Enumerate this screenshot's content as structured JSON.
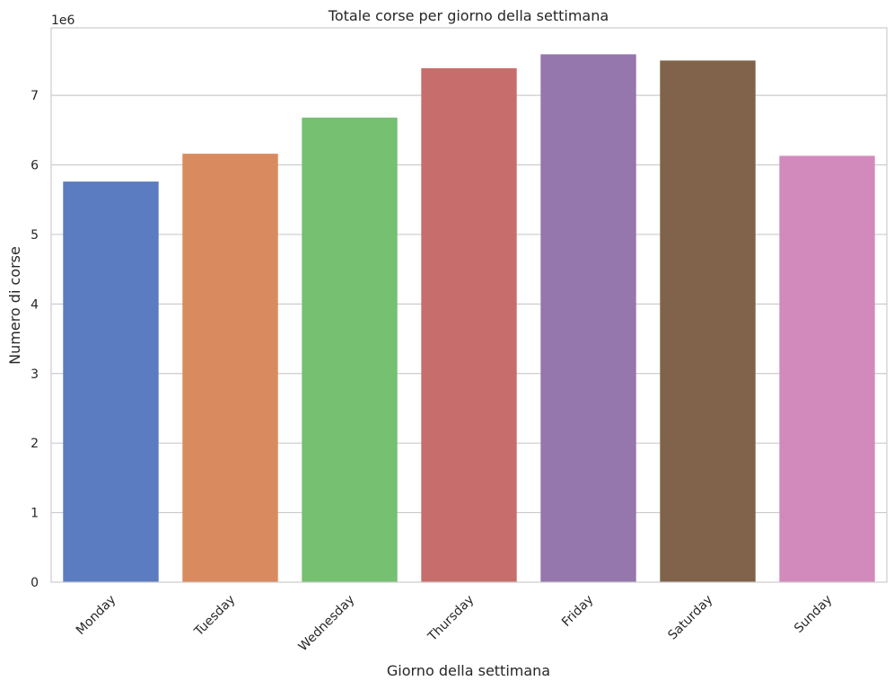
{
  "chart_data": {
    "type": "bar",
    "title": "Totale corse per giorno della settimana",
    "xlabel": "Giorno della settimana",
    "ylabel": "Numero di corse",
    "y_scale_label": "1e6",
    "categories": [
      "Monday",
      "Tuesday",
      "Wednesday",
      "Thursday",
      "Friday",
      "Saturday",
      "Sunday"
    ],
    "values": [
      5760000,
      6160000,
      6680000,
      7390000,
      7590000,
      7500000,
      6130000
    ],
    "colors": [
      "#5b7cc0",
      "#d98a5e",
      "#76c071",
      "#c76e6c",
      "#9577ad",
      "#80634a",
      "#d28abd"
    ],
    "ylim": [
      0,
      7970000
    ],
    "yticks": [
      0,
      1000000,
      2000000,
      3000000,
      4000000,
      5000000,
      6000000,
      7000000
    ],
    "ytick_labels": [
      "0",
      "1",
      "2",
      "3",
      "4",
      "5",
      "6",
      "7"
    ],
    "grid": true,
    "grid_axis": "y",
    "legend": "none"
  }
}
